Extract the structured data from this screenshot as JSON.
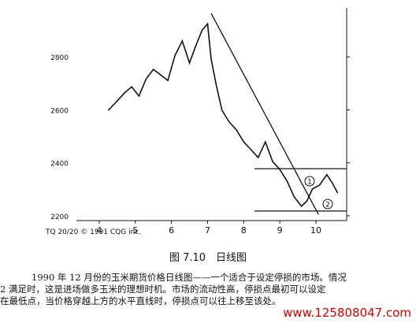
{
  "chart_data": {
    "type": "line",
    "x": [
      4.25,
      4.5,
      4.7,
      4.9,
      5.1,
      5.3,
      5.5,
      5.7,
      5.9,
      6.1,
      6.3,
      6.5,
      6.7,
      6.85,
      7.0,
      7.1,
      7.25,
      7.4,
      7.6,
      7.8,
      8.0,
      8.2,
      8.4,
      8.6,
      8.8,
      9.0,
      9.2,
      9.4,
      9.6,
      9.75,
      9.9,
      10.1,
      10.3,
      10.45,
      10.6
    ],
    "series": [
      {
        "color": "#111111",
        "values": [
          2598,
          2634,
          2664,
          2687,
          2652,
          2717,
          2753,
          2732,
          2711,
          2806,
          2860,
          2777,
          2851,
          2901,
          2925,
          2791,
          2687,
          2598,
          2554,
          2524,
          2479,
          2450,
          2420,
          2479,
          2405,
          2375,
          2331,
          2271,
          2236,
          2256,
          2301,
          2316,
          2355,
          2325,
          2286
        ]
      }
    ],
    "lines": [
      {
        "x": [
          7.1,
          10.07
        ],
        "y": [
          2964,
          2205
        ]
      },
      {
        "x": [
          8.3,
          10.85
        ],
        "y": [
          2378,
          2378
        ]
      },
      {
        "x": [
          8.3,
          10.85
        ],
        "y": [
          2218,
          2218
        ]
      }
    ],
    "annotations": [
      "1",
      "2"
    ],
    "xlim": [
      3.37,
      10.85
    ],
    "xticks": [
      4,
      5,
      6,
      7,
      8,
      9,
      10
    ],
    "ylim": [
      2182,
      2985
    ],
    "yticks": [
      2200,
      2400,
      2600,
      2800
    ],
    "source": "TQ 20/20 © 1991 CQG inc."
  },
  "caption": "图 7.10　日线图",
  "body": [
    "1990 年 12 月份的玉米期货价格日线图——一个适合于设定停损的市场。情况",
    "2 满足时，这是进场做多玉米的理想时机。市场的流动性高，停损点最初可以设定",
    "在最低点，当价格穿越上方的水平直线时，停损点可以往上移至该处。"
  ],
  "watermark": "www.125808047.com"
}
